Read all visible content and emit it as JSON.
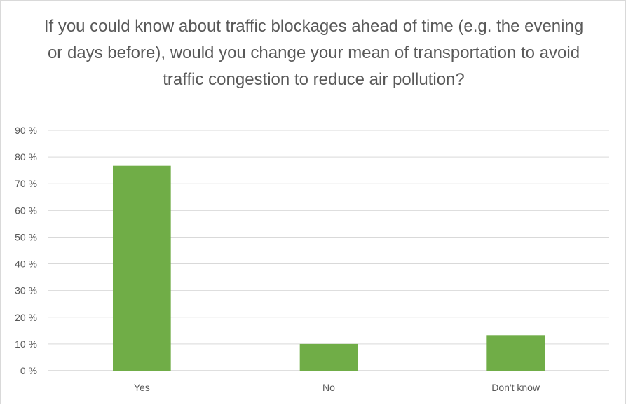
{
  "chart_data": {
    "type": "bar",
    "title": "If you could know about traffic blockages ahead of time (e.g. the evening or days before), would you change your mean of transportation to avoid traffic congestion to reduce air pollution?",
    "categories": [
      "Yes",
      "No",
      "Don't know"
    ],
    "values": [
      76.7,
      10.0,
      13.3
    ],
    "ylim": [
      0,
      90
    ],
    "yticks": [
      "0 %",
      "10 %",
      "20 %",
      "30 %",
      "40 %",
      "50 %",
      "60 %",
      "70 %",
      "80 %",
      "90 %"
    ],
    "bar_color": "#70ad47",
    "grid": true,
    "legend": "none"
  }
}
